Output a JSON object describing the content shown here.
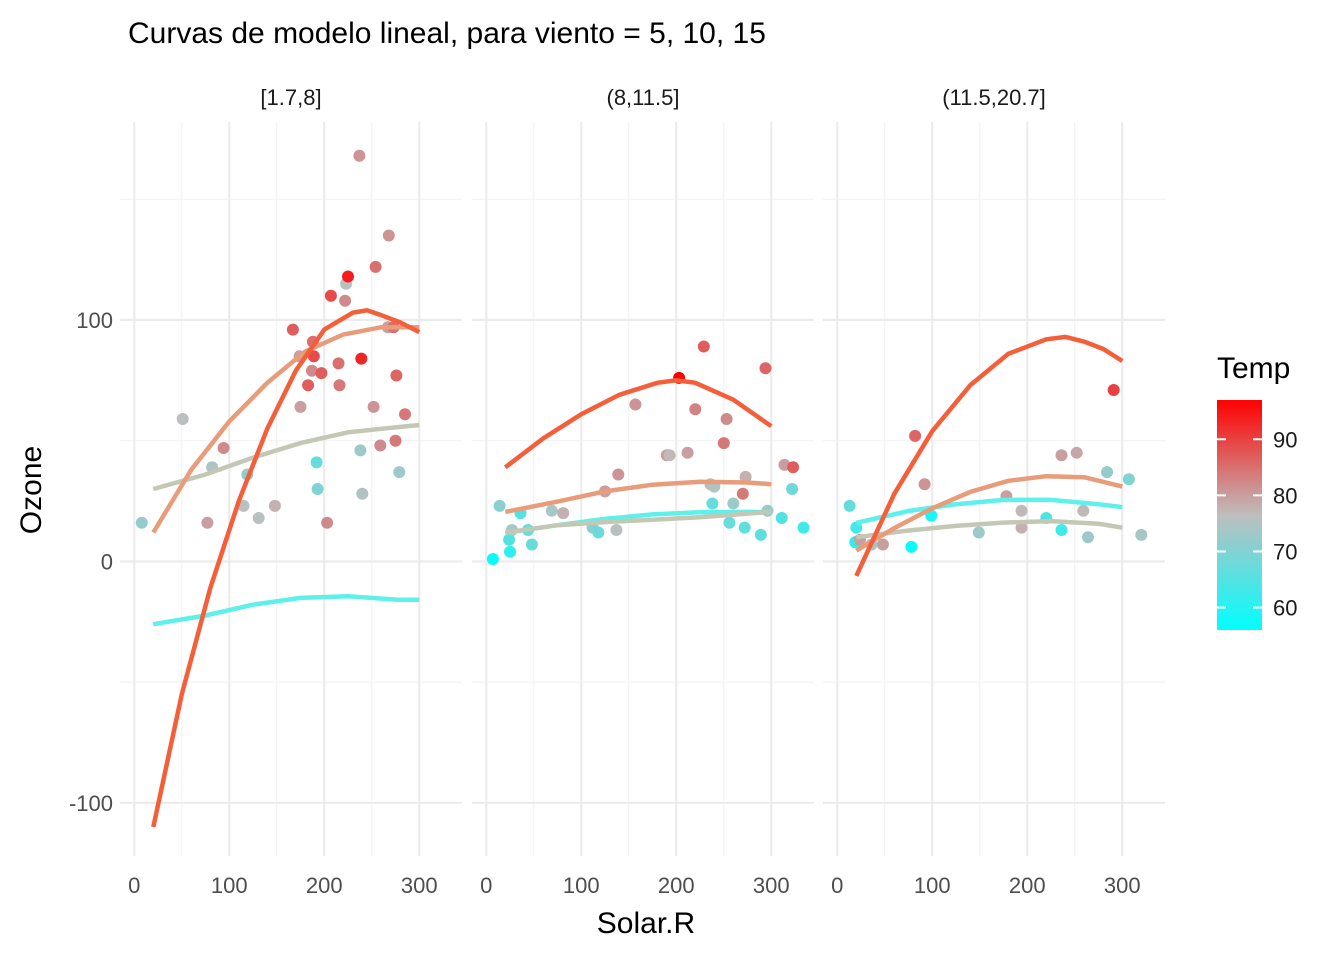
{
  "chart_data": {
    "type": "scatter",
    "title": "Curvas de modelo lineal, para viento = 5, 10, 15",
    "xlabel": "Solar.R",
    "ylabel": "Ozone",
    "xlim": [
      -15,
      345
    ],
    "ylim": [
      -122,
      182
    ],
    "x_ticks": [
      0,
      100,
      200,
      300
    ],
    "x_tick_labels": [
      "0",
      "100",
      "200",
      "300"
    ],
    "y_ticks": [
      -100,
      0,
      100
    ],
    "y_tick_labels": [
      "-100",
      "0",
      "100"
    ],
    "x_minor": [
      50,
      150,
      250
    ],
    "y_minor": [
      -50,
      50,
      150
    ],
    "grid": true,
    "colors": {
      "low": "#00FFFF",
      "mid": "#BEBEBE",
      "high": "#FF0000",
      "curve_low": "#5EF0EA",
      "curve_mid": "#C3C8B4",
      "curve_highmid": "#E89C7A",
      "curve_high": "#F45F3A"
    },
    "legend": {
      "title": "Temp",
      "position": "right",
      "min": 56,
      "max": 97,
      "ticks": [
        60,
        70,
        80,
        90
      ],
      "tick_labels": [
        "60",
        "70",
        "80",
        "90"
      ]
    },
    "panels": [
      {
        "label": "[1.7,8]",
        "points": [
          [
            8,
            16,
            72
          ],
          [
            51,
            59,
            76
          ],
          [
            77,
            16,
            80
          ],
          [
            82,
            39,
            75
          ],
          [
            94,
            47,
            82
          ],
          [
            115,
            23,
            76
          ],
          [
            119,
            36,
            72
          ],
          [
            131,
            18,
            76
          ],
          [
            148,
            23,
            78
          ],
          [
            167,
            96,
            87
          ],
          [
            174,
            85,
            80
          ],
          [
            175,
            64,
            80
          ],
          [
            183,
            73,
            87
          ],
          [
            187,
            79,
            82
          ],
          [
            188,
            91,
            85
          ],
          [
            189,
            85,
            89
          ],
          [
            192,
            41,
            67
          ],
          [
            193,
            30,
            70
          ],
          [
            197,
            78,
            87
          ],
          [
            203,
            16,
            82
          ],
          [
            207,
            110,
            89
          ],
          [
            215,
            82,
            85
          ],
          [
            216,
            73,
            84
          ],
          [
            222,
            108,
            82
          ],
          [
            223,
            115,
            76
          ],
          [
            225,
            118,
            94
          ],
          [
            237,
            168,
            81
          ],
          [
            239,
            84,
            93
          ],
          [
            238,
            46,
            73
          ],
          [
            240,
            28,
            75
          ],
          [
            254,
            122,
            85
          ],
          [
            252,
            64,
            81
          ],
          [
            259,
            48,
            82
          ],
          [
            267,
            97,
            80
          ],
          [
            268,
            135,
            81
          ],
          [
            273,
            97,
            85
          ],
          [
            275,
            50,
            84
          ],
          [
            276,
            77,
            86
          ],
          [
            279,
            37,
            73
          ],
          [
            285,
            61,
            84
          ]
        ],
        "curves": [
          {
            "temp": 60,
            "x": [
              20,
              75,
              125,
              175,
              225,
              275,
              300
            ],
            "y": [
              -26,
              -22.4,
              -17.9,
              -15.1,
              -14.4,
              -15.8,
              -15.9
            ]
          },
          {
            "temp": 70,
            "x": [
              20,
              75,
              125,
              175,
              225,
              275,
              300
            ],
            "y": [
              30,
              36,
              43,
              49,
              53.5,
              55.5,
              56.5
            ]
          },
          {
            "temp": 80,
            "x": [
              20,
              60,
              100,
              140,
              180,
              220,
              260,
              300
            ],
            "y": [
              12,
              38,
              58,
              74,
              87,
              94,
              97,
              97
            ]
          },
          {
            "temp": 90,
            "x": [
              20,
              50,
              80,
              110,
              140,
              170,
              200,
              230,
              245,
              260,
              280,
              300
            ],
            "y": [
              -110,
              -55,
              -11,
              25,
              55,
              79,
              96,
              103,
              104,
              102,
              99,
              95
            ]
          }
        ]
      },
      {
        "label": "(8,11.5]",
        "points": [
          [
            7,
            1,
            57
          ],
          [
            14,
            23,
            71
          ],
          [
            24,
            9,
            65
          ],
          [
            25,
            4,
            61
          ],
          [
            27,
            13,
            74
          ],
          [
            36,
            20,
            65
          ],
          [
            44,
            13,
            67
          ],
          [
            48,
            7,
            67
          ],
          [
            69,
            21,
            74
          ],
          [
            81,
            20,
            78
          ],
          [
            112,
            14,
            71
          ],
          [
            118,
            12,
            68
          ],
          [
            125,
            29,
            80
          ],
          [
            137,
            13,
            76
          ],
          [
            139,
            36,
            81
          ],
          [
            157,
            65,
            81
          ],
          [
            190,
            44,
            80
          ],
          [
            193,
            44,
            77
          ],
          [
            203,
            76,
            97
          ],
          [
            212,
            45,
            80
          ],
          [
            220,
            63,
            83
          ],
          [
            229,
            89,
            87
          ],
          [
            236,
            32,
            77
          ],
          [
            238,
            24,
            67
          ],
          [
            240,
            31,
            75
          ],
          [
            250,
            49,
            84
          ],
          [
            253,
            59,
            82
          ],
          [
            256,
            16,
            67
          ],
          [
            260,
            24,
            73
          ],
          [
            270,
            28,
            84
          ],
          [
            272,
            14,
            66
          ],
          [
            273,
            35,
            78
          ],
          [
            289,
            11,
            66
          ],
          [
            294,
            80,
            86
          ],
          [
            296,
            21,
            72
          ],
          [
            311,
            18,
            65
          ],
          [
            314,
            40,
            80
          ],
          [
            322,
            30,
            68
          ],
          [
            323,
            39,
            87
          ],
          [
            334,
            14,
            63
          ]
        ],
        "curves": [
          {
            "temp": 60,
            "x": [
              20,
              75,
              125,
              175,
              225,
              275,
              300
            ],
            "y": [
              11.8,
              15,
              17.6,
              19.5,
              20.4,
              20.5,
              20.4
            ]
          },
          {
            "temp": 70,
            "x": [
              20,
              75,
              125,
              175,
              225,
              275,
              300
            ],
            "y": [
              12,
              15,
              16.3,
              17.3,
              18.3,
              19.8,
              20.5
            ]
          },
          {
            "temp": 80,
            "x": [
              20,
              75,
              125,
              175,
              225,
              275,
              300
            ],
            "y": [
              20.5,
              24.8,
              29,
              31.8,
              33,
              32.7,
              32
            ]
          },
          {
            "temp": 90,
            "x": [
              20,
              60,
              100,
              140,
              180,
              200,
              220,
              260,
              300
            ],
            "y": [
              39,
              51,
              61,
              69,
              74,
              75,
              74,
              67,
              56
            ]
          }
        ]
      },
      {
        "label": "(11.5,20.7]",
        "points": [
          [
            13,
            23,
            67
          ],
          [
            19,
            8,
            61
          ],
          [
            20,
            14,
            63
          ],
          [
            24,
            9,
            80
          ],
          [
            36,
            7,
            74
          ],
          [
            48,
            7,
            80
          ],
          [
            78,
            6,
            57
          ],
          [
            92,
            32,
            81
          ],
          [
            99,
            19,
            59
          ],
          [
            82,
            52,
            86
          ],
          [
            149,
            12,
            73
          ],
          [
            178,
            27,
            80
          ],
          [
            194,
            14,
            78
          ],
          [
            194,
            21,
            77
          ],
          [
            220,
            18,
            65
          ],
          [
            236,
            13,
            63
          ],
          [
            236,
            44,
            80
          ],
          [
            252,
            45,
            79
          ],
          [
            259,
            21,
            77
          ],
          [
            264,
            10,
            73
          ],
          [
            284,
            37,
            72
          ],
          [
            291,
            71,
            90
          ],
          [
            307,
            34,
            70
          ],
          [
            320,
            11,
            74
          ]
        ],
        "curves": [
          {
            "temp": 60,
            "x": [
              20,
              75,
              125,
              175,
              225,
              275,
              300
            ],
            "y": [
              16,
              20.9,
              23.7,
              25.5,
              25.5,
              23.7,
              22.5
            ]
          },
          {
            "temp": 70,
            "x": [
              20,
              75,
              125,
              175,
              225,
              275,
              300
            ],
            "y": [
              10,
              12.8,
              14.7,
              16.1,
              16.7,
              15.6,
              14
            ]
          },
          {
            "temp": 80,
            "x": [
              20,
              60,
              100,
              140,
              180,
              220,
              260,
              300
            ],
            "y": [
              4.5,
              13.8,
              22,
              28.8,
              33.4,
              35.3,
              34.9,
              31
            ]
          },
          {
            "temp": 90,
            "x": [
              20,
              60,
              100,
              140,
              180,
              220,
              240,
              260,
              280,
              300
            ],
            "y": [
              -6,
              28,
              54,
              73,
              86,
              92,
              93,
              91,
              88,
              83
            ]
          }
        ]
      }
    ]
  }
}
